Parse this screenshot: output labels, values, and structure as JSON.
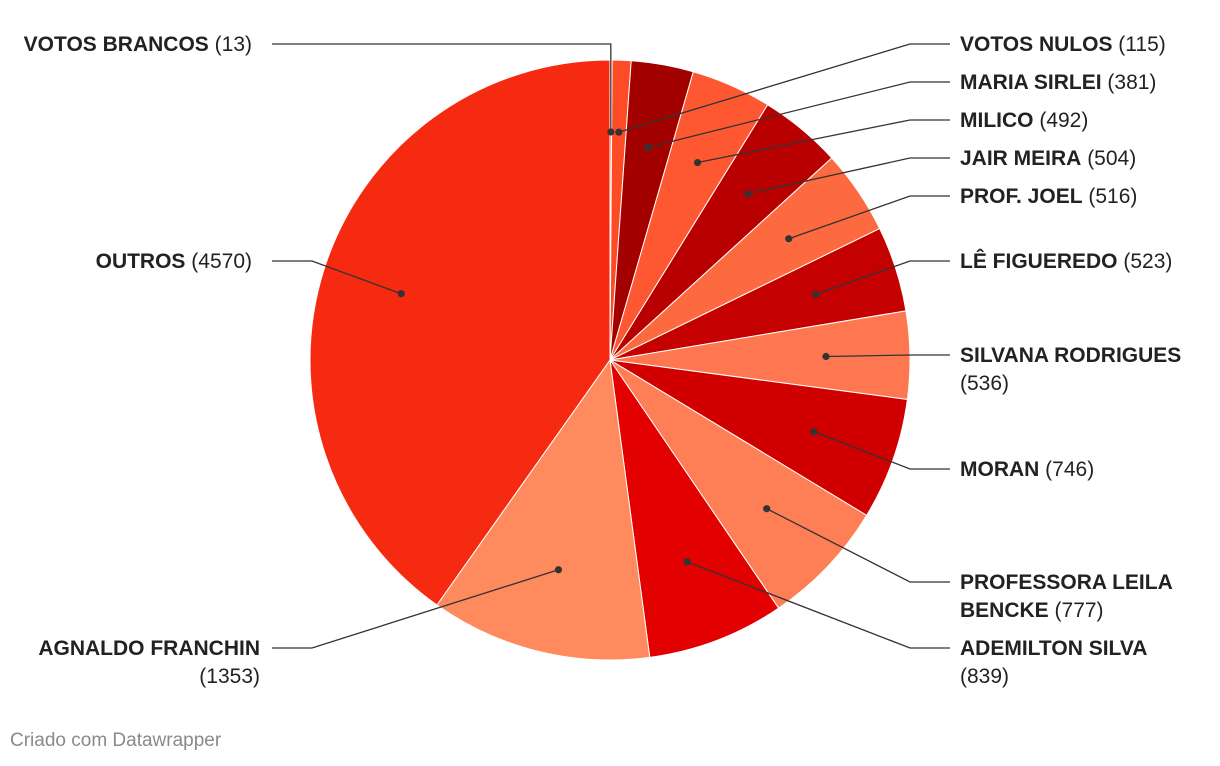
{
  "chart_data": {
    "type": "pie",
    "slices": [
      {
        "label": "VOTOS BRANCOS",
        "value": 13,
        "value_text": "(13)",
        "color": "#fd5c34"
      },
      {
        "label": "VOTOS NULOS",
        "value": 115,
        "value_text": "(115)",
        "color": "#fd4b26"
      },
      {
        "label": "MARIA SIRLEI",
        "value": 381,
        "value_text": "(381)",
        "color": "#a30000"
      },
      {
        "label": "MILICO",
        "value": 492,
        "value_text": "(492)",
        "color": "#fe5832"
      },
      {
        "label": "JAIR MEIRA",
        "value": 504,
        "value_text": "(504)",
        "color": "#b80000"
      },
      {
        "label": "PROF. JOEL",
        "value": 516,
        "value_text": "(516)",
        "color": "#fe6a40"
      },
      {
        "label": "LÊ FIGUEREDO",
        "value": 523,
        "value_text": "(523)",
        "color": "#c40000"
      },
      {
        "label": "SILVANA RODRIGUES",
        "value": 536,
        "value_text": "(536)",
        "color": "#fe7750"
      },
      {
        "label": "MORAN",
        "value": 746,
        "value_text": "(746)",
        "color": "#d10000"
      },
      {
        "label": "PROFESSORA LEILA BENCKE",
        "value": 777,
        "value_text": "(777)",
        "color": "#fe7e55"
      },
      {
        "label": "ADEMILTON SILVA",
        "value": 839,
        "value_text": "(839)",
        "color": "#e20000"
      },
      {
        "label": "AGNALDO FRANCHIN",
        "value": 1353,
        "value_text": "(1353)",
        "color": "#fe8a5d"
      },
      {
        "label": "OUTROS",
        "value": 4570,
        "value_text": "(4570)",
        "color": "#f52a10"
      }
    ]
  },
  "labels": {
    "right": [
      {
        "name": "VOTOS NULOS",
        "value": "(115)"
      },
      {
        "name": "MARIA SIRLEI",
        "value": "(381)"
      },
      {
        "name": "MILICO",
        "value": "(492)"
      },
      {
        "name": "JAIR MEIRA",
        "value": "(504)"
      },
      {
        "name": "PROF. JOEL",
        "value": "(516)"
      },
      {
        "name": "LÊ FIGUEREDO",
        "value": "(523)"
      },
      {
        "name": "SILVANA RODRIGUES",
        "value": "(536)"
      },
      {
        "name": "MORAN",
        "value": "(746)"
      },
      {
        "name": "PROFESSORA LEILA",
        "name2": "BENCKE",
        "value": "(777)"
      },
      {
        "name": "ADEMILTON SILVA",
        "value": "(839)"
      }
    ],
    "left": [
      {
        "name": "VOTOS BRANCOS",
        "value": "(13)"
      },
      {
        "name": "OUTROS",
        "value": "(4570)"
      },
      {
        "name": "AGNALDO FRANCHIN",
        "value": "(1353)"
      }
    ]
  },
  "credit": "Criado com Datawrapper"
}
